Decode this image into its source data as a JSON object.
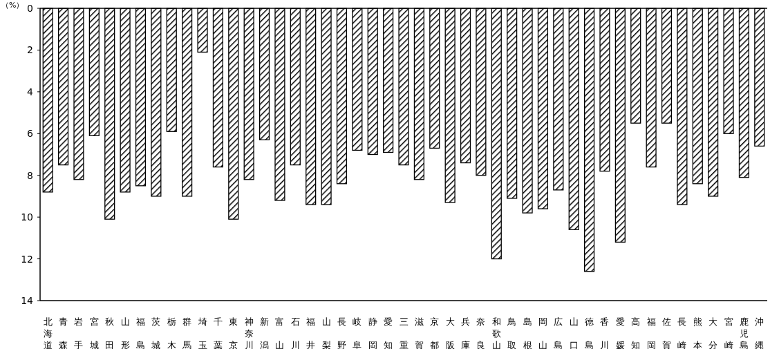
{
  "chart_data": {
    "type": "bar",
    "ylabel": "（%）",
    "categories": [
      "北海道",
      "青森",
      "岩手",
      "宮城",
      "秋田",
      "山形",
      "福島",
      "茨城",
      "栃木",
      "群馬",
      "埼玉",
      "千葉",
      "東京",
      "神奈川",
      "新潟",
      "富山",
      "石川",
      "福井",
      "山梨",
      "長野",
      "岐阜",
      "静岡",
      "愛知",
      "三重",
      "滋賀",
      "京都",
      "大阪",
      "兵庫",
      "奈良",
      "和歌山",
      "鳥取",
      "島根",
      "岡山",
      "広島",
      "山口",
      "徳島",
      "香川",
      "愛媛",
      "高知",
      "福岡",
      "佐賀",
      "長崎",
      "熊本",
      "大分",
      "宮崎",
      "鹿児島",
      "沖縄"
    ],
    "values": [
      8.8,
      7.5,
      8.2,
      6.1,
      10.1,
      8.8,
      8.5,
      9.0,
      5.9,
      9.0,
      2.1,
      7.6,
      10.1,
      8.2,
      6.3,
      9.2,
      7.5,
      9.4,
      9.4,
      8.4,
      6.8,
      7.0,
      6.9,
      7.5,
      8.2,
      6.7,
      9.3,
      7.4,
      8.0,
      12.0,
      9.1,
      9.8,
      9.6,
      8.7,
      10.6,
      12.6,
      7.8,
      11.2,
      5.5,
      7.6,
      5.5,
      9.4,
      8.4,
      9.0,
      6.0,
      8.1,
      6.6
    ],
    "color": "#000000",
    "ylim": [
      14,
      0
    ],
    "yticks": [
      0,
      2,
      4,
      6,
      8,
      10,
      12,
      14
    ],
    "grid": false
  }
}
